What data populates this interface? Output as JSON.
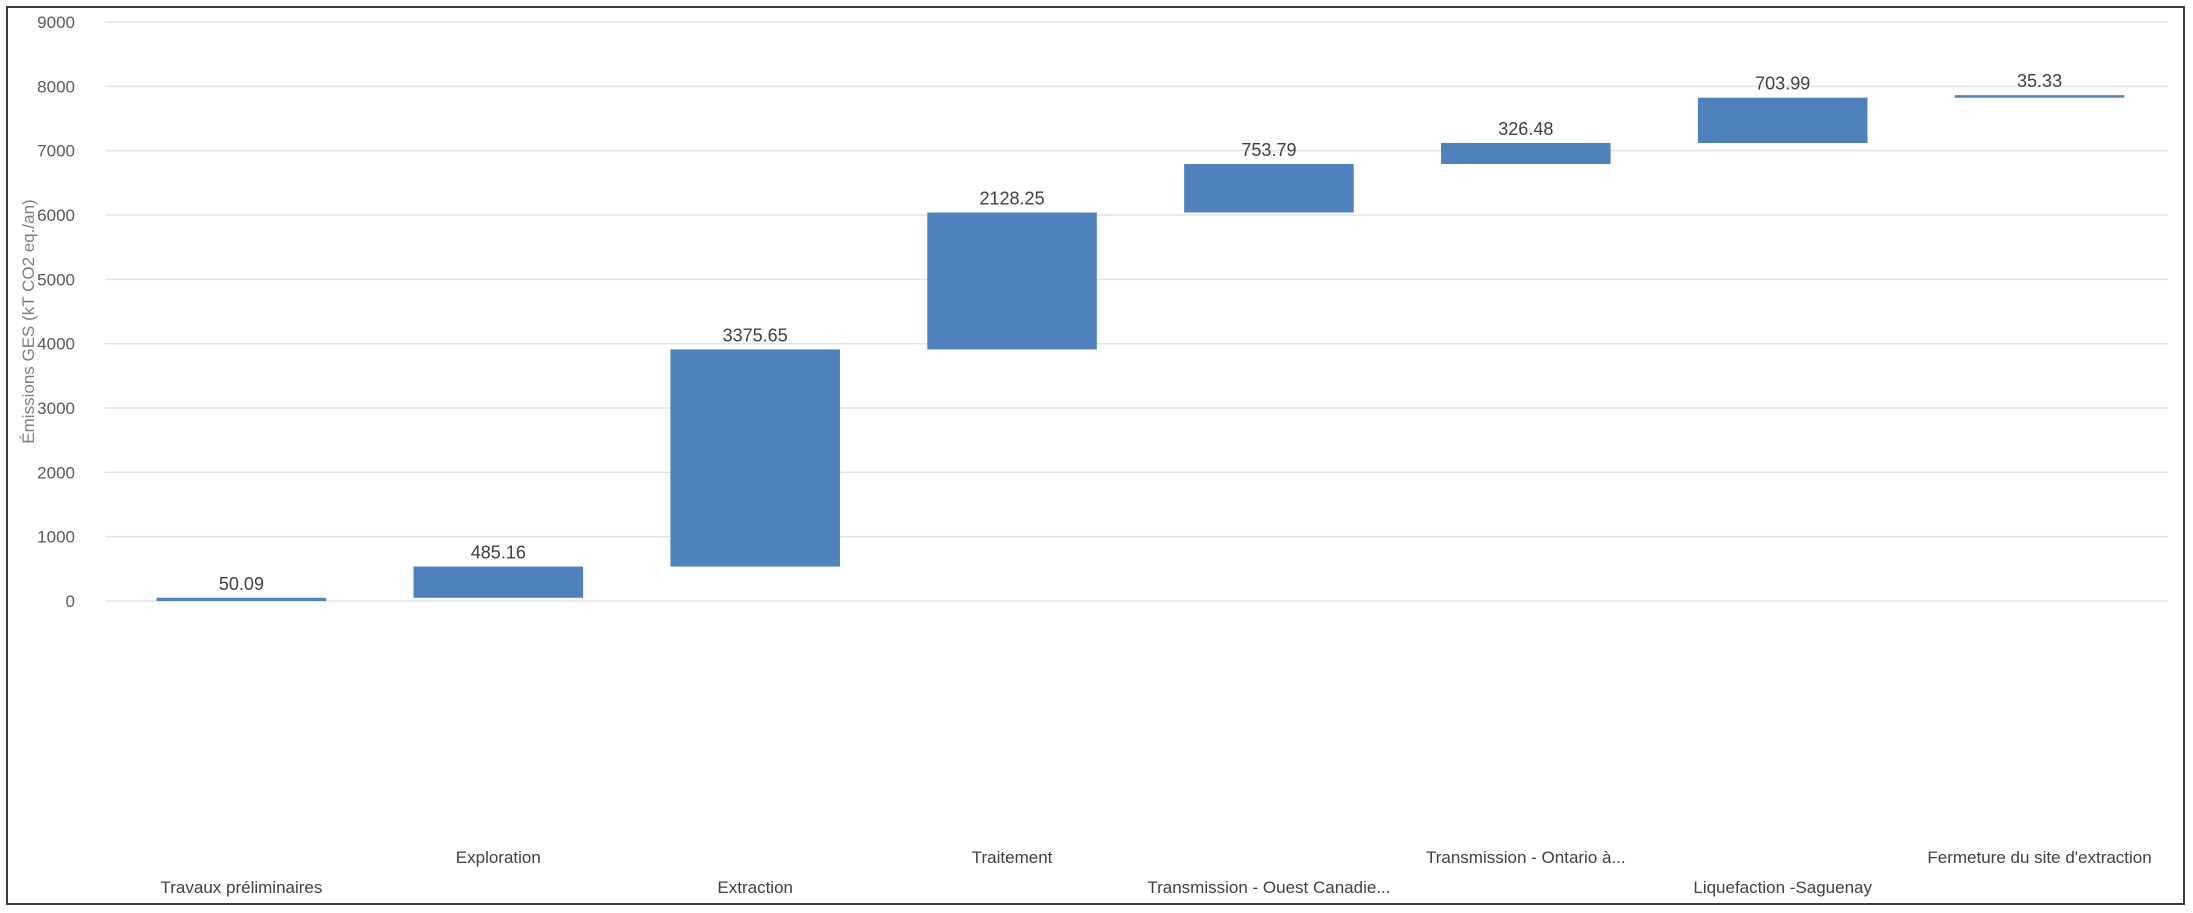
{
  "chart_data": {
    "type": "bar",
    "subtype": "waterfall",
    "title": "",
    "xlabel": "",
    "ylabel": "Émissions GES (kT CO2 eq./an)",
    "ylim": [
      0,
      9000
    ],
    "yticks": [
      0,
      1000,
      2000,
      3000,
      4000,
      5000,
      6000,
      7000,
      8000,
      9000
    ],
    "grid": true,
    "legend": "none",
    "bar_color": "#4f81bd",
    "categories": [
      "Travaux préliminaires",
      "Exploration",
      "Extraction",
      "Traitement",
      "Transmission - Ouest Canadie...",
      "Transmission - Ontario à...",
      "Liquefaction -Saguenay",
      "Fermeture du site d'extraction"
    ],
    "values": [
      50.09,
      485.16,
      3375.65,
      2128.25,
      753.79,
      326.48,
      703.99,
      35.33
    ],
    "data_labels": [
      "50.09",
      "485.16",
      "3375.65",
      "2128.25",
      "753.79",
      "326.48",
      "703.99",
      "35.33"
    ]
  }
}
